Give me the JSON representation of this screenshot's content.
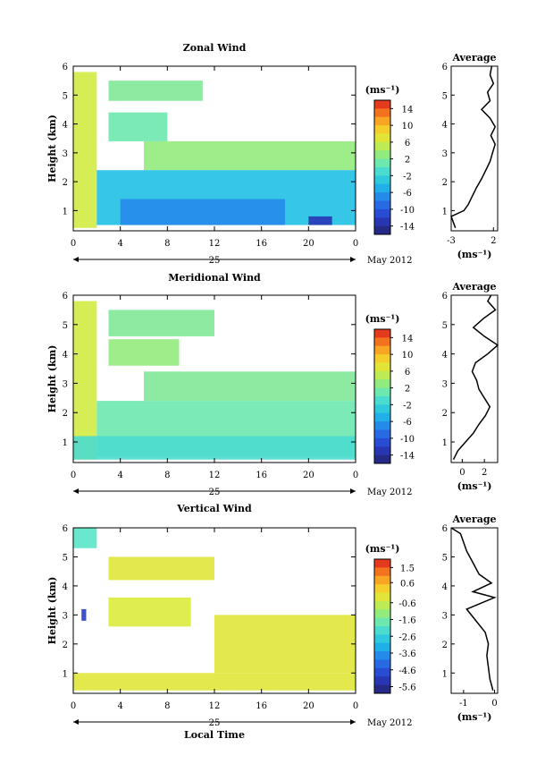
{
  "panels": [
    {
      "key": "zonal",
      "title": "Zonal Wind",
      "ylabel": "Height (km)",
      "y_ticks": [
        "1",
        "2",
        "3",
        "4",
        "5",
        "6"
      ],
      "x_ticks": [
        "0",
        "4",
        "8",
        "12",
        "16",
        "20",
        "0"
      ],
      "day_label": "25",
      "date_label": "May 2012",
      "units": "(ms⁻¹)",
      "colorbar_ticks": [
        "14",
        "10",
        "6",
        "2",
        "-2",
        "-6",
        "-10",
        "-14"
      ],
      "avg_title": "Average",
      "avg_xticks": [
        "-3",
        "2"
      ],
      "avg_xlabel": "(ms⁻¹)"
    },
    {
      "key": "meridional",
      "title": "Meridional Wind",
      "ylabel": "Height (km)",
      "y_ticks": [
        "1",
        "2",
        "3",
        "4",
        "5",
        "6"
      ],
      "x_ticks": [
        "0",
        "4",
        "8",
        "12",
        "16",
        "20",
        "0"
      ],
      "day_label": "25",
      "date_label": "May 2012",
      "units": "(ms⁻¹)",
      "colorbar_ticks": [
        "14",
        "10",
        "6",
        "2",
        "-2",
        "-6",
        "-10",
        "-14"
      ],
      "avg_title": "Average",
      "avg_xticks": [
        "0",
        "2"
      ],
      "avg_xlabel": "(ms⁻¹)"
    },
    {
      "key": "vertical",
      "title": "Vertical Wind",
      "ylabel": "Height (km)",
      "y_ticks": [
        "1",
        "2",
        "3",
        "4",
        "5",
        "6"
      ],
      "x_ticks": [
        "0",
        "4",
        "8",
        "12",
        "16",
        "20",
        "0"
      ],
      "day_label": "25",
      "date_label": "May 2012",
      "xlabel": "Local Time",
      "units": "(ms⁻¹)",
      "colorbar_ticks": [
        "1.5",
        "0.6",
        "-0.6",
        "-1.6",
        "-2.6",
        "-3.6",
        "-4.6",
        "-5.6"
      ],
      "avg_title": "Average",
      "avg_xticks": [
        "-1",
        "0"
      ],
      "avg_xlabel": "(ms⁻¹)"
    }
  ],
  "chart_data": [
    {
      "type": "heatmap",
      "title": "Zonal Wind",
      "ylabel": "Height (km)",
      "xlim": [
        0,
        24
      ],
      "ylim": [
        0.3,
        6
      ],
      "colorbar_range": [
        -16,
        16
      ],
      "colorbar_ticks": [
        14,
        10,
        6,
        2,
        -2,
        -6,
        -10,
        -14
      ],
      "regions": [
        {
          "t": [
            0,
            2
          ],
          "h": [
            0.4,
            5.8
          ],
          "value": 6
        },
        {
          "t": [
            3,
            11
          ],
          "h": [
            4.8,
            5.5
          ],
          "value": 2
        },
        {
          "t": [
            3,
            8
          ],
          "h": [
            3.4,
            4.4
          ],
          "value": 1
        },
        {
          "t": [
            6,
            24
          ],
          "h": [
            2.4,
            3.4
          ],
          "value": 3
        },
        {
          "t": [
            2,
            24
          ],
          "h": [
            0.5,
            2.4
          ],
          "value": -4
        },
        {
          "t": [
            4,
            18
          ],
          "h": [
            0.5,
            1.4
          ],
          "value": -7
        },
        {
          "t": [
            20,
            22
          ],
          "h": [
            0.5,
            0.8
          ],
          "value": -13
        }
      ],
      "average_profile": {
        "height": [
          0.4,
          0.8,
          1.0,
          1.2,
          1.5,
          1.8,
          2.1,
          2.4,
          2.7,
          3.0,
          3.3,
          3.6,
          3.9,
          4.2,
          4.5,
          4.8,
          5.1,
          5.4,
          5.7,
          6.0
        ],
        "value": [
          -2.5,
          -3.0,
          -1.5,
          -1.0,
          -0.5,
          0.0,
          0.6,
          1.1,
          1.6,
          1.9,
          2.2,
          1.7,
          2.2,
          1.6,
          0.6,
          1.6,
          1.3,
          2.0,
          1.6,
          1.8
        ],
        "xlim": [
          -3,
          2.5
        ]
      }
    },
    {
      "type": "heatmap",
      "title": "Meridional Wind",
      "ylabel": "Height (km)",
      "xlim": [
        0,
        24
      ],
      "ylim": [
        0.3,
        6
      ],
      "colorbar_range": [
        -16,
        16
      ],
      "colorbar_ticks": [
        14,
        10,
        6,
        2,
        -2,
        -6,
        -10,
        -14
      ],
      "regions": [
        {
          "t": [
            0,
            2
          ],
          "h": [
            0.4,
            5.8
          ],
          "value": 6
        },
        {
          "t": [
            3,
            12
          ],
          "h": [
            4.6,
            5.5
          ],
          "value": 2
        },
        {
          "t": [
            3,
            9
          ],
          "h": [
            3.6,
            4.5
          ],
          "value": 3
        },
        {
          "t": [
            6,
            24
          ],
          "h": [
            2.4,
            3.4
          ],
          "value": 2
        },
        {
          "t": [
            2,
            24
          ],
          "h": [
            0.5,
            2.4
          ],
          "value": 1
        },
        {
          "t": [
            0,
            24
          ],
          "h": [
            0.4,
            1.2
          ],
          "value": -1
        }
      ],
      "average_profile": {
        "height": [
          0.4,
          0.7,
          1.0,
          1.3,
          1.6,
          1.9,
          2.2,
          2.5,
          2.8,
          3.1,
          3.4,
          3.7,
          4.0,
          4.3,
          4.6,
          4.9,
          5.2,
          5.5,
          5.8,
          6.0
        ],
        "value": [
          -0.8,
          -0.4,
          0.3,
          1.0,
          1.5,
          2.1,
          2.5,
          2.0,
          1.5,
          1.3,
          0.9,
          1.2,
          2.3,
          3.2,
          2.0,
          1.0,
          1.9,
          3.0,
          2.3,
          2.6
        ],
        "xlim": [
          -1,
          3.2
        ]
      }
    },
    {
      "type": "heatmap",
      "title": "Vertical Wind",
      "xlabel": "Local Time",
      "ylabel": "Height (km)",
      "xlim": [
        0,
        24
      ],
      "ylim": [
        0.3,
        6
      ],
      "colorbar_range": [
        -6,
        2
      ],
      "colorbar_ticks": [
        1.5,
        0.6,
        -0.6,
        -1.6,
        -2.6,
        -3.6,
        -4.6,
        -5.6
      ],
      "regions": [
        {
          "t": [
            0,
            2
          ],
          "h": [
            5.3,
            6
          ],
          "value": -2.0
        },
        {
          "t": [
            3,
            12
          ],
          "h": [
            4.2,
            5.0
          ],
          "value": -0.3
        },
        {
          "t": [
            3,
            10
          ],
          "h": [
            2.6,
            3.6
          ],
          "value": -0.4
        },
        {
          "t": [
            12,
            24
          ],
          "h": [
            1.0,
            3.0
          ],
          "value": -0.3
        },
        {
          "t": [
            0,
            24
          ],
          "h": [
            0.4,
            1.0
          ],
          "value": -0.3
        },
        {
          "t": [
            0.7,
            1.1
          ],
          "h": [
            2.8,
            3.2
          ],
          "value": -5.0
        }
      ],
      "average_profile": {
        "height": [
          0.4,
          0.8,
          1.2,
          1.6,
          2.0,
          2.4,
          2.8,
          3.2,
          3.6,
          3.8,
          4.1,
          4.4,
          4.8,
          5.2,
          5.5,
          5.8,
          6.0
        ],
        "value": [
          -0.05,
          -0.15,
          -0.2,
          -0.25,
          -0.2,
          -0.3,
          -0.6,
          -0.9,
          0.0,
          -0.7,
          -0.1,
          -0.5,
          -0.7,
          -0.9,
          -1.0,
          -1.1,
          -1.4
        ],
        "xlim": [
          -1.4,
          0.1
        ]
      }
    }
  ]
}
